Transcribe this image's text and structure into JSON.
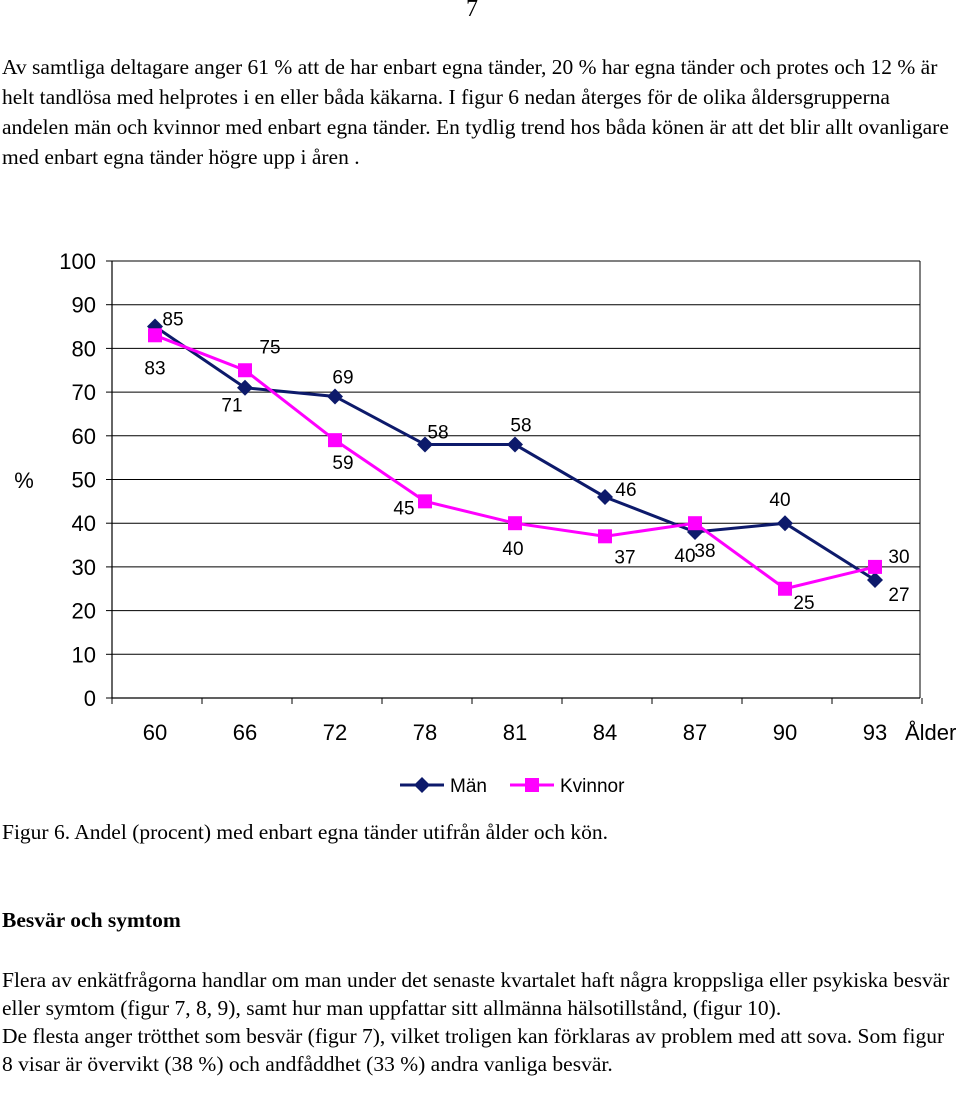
{
  "page_number": "7",
  "intro_paragraph": "Av samtliga deltagare anger 61 % att de har enbart egna tänder, 20 % har egna tänder och protes och 12 % är helt tandlösa med helprotes i en eller båda käkarna. I figur 6 nedan återges för de olika åldersgrupperna andelen män och kvinnor med enbart egna tänder. En tydlig trend hos båda könen är att det blir allt ovanligare med enbart egna tänder högre upp i åren .",
  "chart_data": {
    "type": "line",
    "categories": [
      "60",
      "66",
      "72",
      "78",
      "81",
      "84",
      "87",
      "90",
      "93"
    ],
    "xlabel": "Ålder",
    "ylabel": "%",
    "ylim": [
      0,
      100
    ],
    "yticks": [
      0,
      10,
      20,
      30,
      40,
      50,
      60,
      70,
      80,
      90,
      100
    ],
    "grid": true,
    "legend": "bottom-center",
    "series": [
      {
        "name": "Män",
        "color": "#0d1a6b",
        "marker": "diamond",
        "values": [
          85,
          71,
          69,
          58,
          58,
          46,
          38,
          40,
          27
        ]
      },
      {
        "name": "Kvinnor",
        "color": "#ff00ff",
        "marker": "square",
        "values": [
          83,
          75,
          59,
          45,
          40,
          37,
          40,
          25,
          30
        ]
      }
    ]
  },
  "caption": "Figur 6. Andel (procent) med enbart egna tänder utifrån ålder och kön.",
  "section_heading": "Besvär och symtom",
  "body_paragraphs": [
    "Flera av enkätfrågorna handlar om man under det senaste kvartalet haft några kroppsliga eller psykiska besvär eller symtom (figur 7, 8, 9), samt hur man uppfattar sitt allmänna hälsotillstånd, (figur 10).",
    "De flesta anger trötthet som besvär (figur 7), vilket troligen kan förklaras av problem med att sova. Som figur 8 visar är övervikt (38 %) och andfåddhet (33 %) andra vanliga besvär."
  ]
}
